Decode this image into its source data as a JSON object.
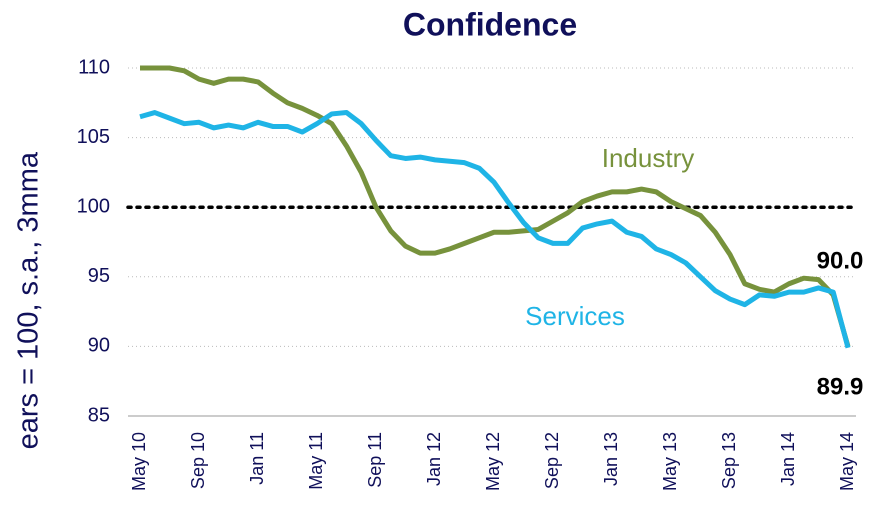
{
  "chart_data": {
    "type": "line",
    "title": "Confidence",
    "y_label": "ears = 100, s.a., 3mma",
    "categories": [
      "May 10",
      null,
      null,
      null,
      "Sep 10",
      null,
      null,
      null,
      "Jan 11",
      null,
      null,
      null,
      "May 11",
      null,
      null,
      null,
      "Sep 11",
      null,
      null,
      null,
      "Jan 12",
      null,
      null,
      null,
      "May 12",
      null,
      null,
      null,
      "Sep 12",
      null,
      null,
      null,
      "Jan 13",
      null,
      null,
      null,
      "May 13",
      null,
      null,
      null,
      "Sep 13",
      null,
      null,
      null,
      "Jan 14",
      null,
      null,
      null,
      "May 14"
    ],
    "series": [
      {
        "name": "Industry",
        "color": "#77923c",
        "values": [
          110,
          110,
          110,
          109.8,
          109.2,
          108.9,
          109.2,
          109.2,
          109.0,
          108.2,
          107.5,
          107.1,
          106.6,
          106.0,
          104.4,
          102.5,
          100.0,
          98.3,
          97.2,
          96.7,
          96.7,
          97.0,
          97.4,
          97.8,
          98.2,
          98.2,
          98.3,
          98.4,
          99.0,
          99.6,
          100.4,
          100.8,
          101.1,
          101.1,
          101.3,
          101.1,
          100.4,
          99.9,
          99.4,
          98.2,
          96.6,
          94.5,
          94.1,
          93.9,
          94.5,
          94.9,
          94.8,
          93.7,
          90.0
        ],
        "end_label": "90.0"
      },
      {
        "name": "Services",
        "color": "#1fb4e6",
        "values": [
          106.5,
          106.8,
          106.4,
          106.0,
          106.1,
          105.7,
          105.9,
          105.7,
          106.1,
          105.8,
          105.8,
          105.4,
          106.0,
          106.7,
          106.8,
          106.0,
          104.8,
          103.7,
          103.5,
          103.6,
          103.4,
          103.3,
          103.2,
          102.8,
          101.8,
          100.3,
          98.9,
          97.8,
          97.4,
          97.4,
          98.5,
          98.8,
          99.0,
          98.2,
          97.9,
          97.0,
          96.6,
          96.0,
          95.0,
          94.0,
          93.4,
          93.0,
          93.7,
          93.6,
          93.9,
          93.9,
          94.2,
          93.9,
          89.9
        ],
        "end_label": "89.9"
      }
    ],
    "reference_line": 100,
    "ylim": [
      85,
      110
    ],
    "yticks": [
      85,
      90,
      95,
      100,
      105,
      110
    ],
    "grid": true
  }
}
